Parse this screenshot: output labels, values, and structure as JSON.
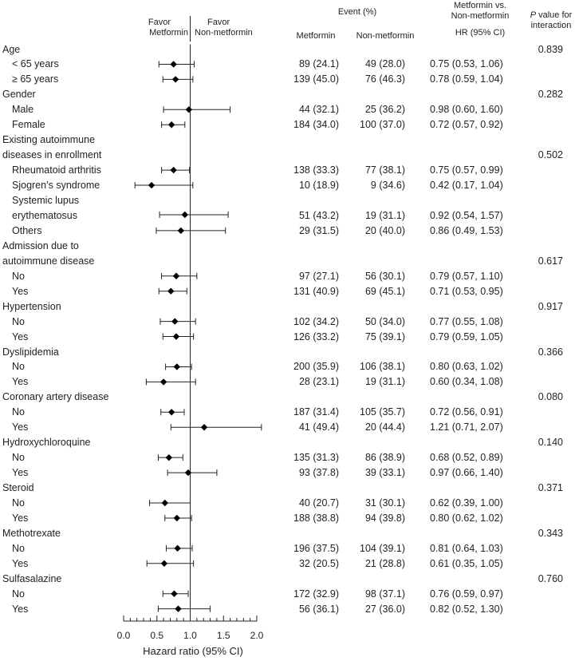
{
  "chart_data": {
    "type": "forest",
    "xlabel": "Hazard ratio (95% CI)",
    "xlim": [
      0,
      2.0
    ],
    "xticks": [
      0,
      0.5,
      1.0,
      1.5,
      2.0
    ],
    "xtick_labels": [
      "0.0",
      "0.5",
      "1.0",
      "1.5",
      "2.0"
    ],
    "reference_line": 1.0,
    "headers": {
      "favor_left": "Favor Metformin",
      "favor_left_line1": "Favor",
      "favor_left_line2": "Metformin",
      "favor_right_line1": "Favor",
      "favor_right_line2": "Non-metformin",
      "event": "Event (%)",
      "col_metformin": "Metformin",
      "col_nonmetformin": "Non-metformin",
      "hr_line1": "Metformin vs.",
      "hr_line2": "Non-metformin",
      "hr_line3": "HR (95% CI)",
      "p_line1_italic": "P",
      "p_line1_rest": " value for",
      "p_line2": "interaction"
    },
    "rows": [
      {
        "label": "Age",
        "p": "0.839"
      },
      {
        "label": "< 65 years",
        "indent": true,
        "met": "89 (24.1)",
        "non": "49 (28.0)",
        "hr_text": "0.75 (0.53, 1.06)",
        "hr": 0.75,
        "lo": 0.53,
        "hi": 1.06
      },
      {
        "label": "≥ 65 years",
        "indent": true,
        "met": "139 (45.0)",
        "non": "76 (46.3)",
        "hr_text": "0.78 (0.59, 1.04)",
        "hr": 0.78,
        "lo": 0.59,
        "hi": 1.04
      },
      {
        "label": "Gender",
        "p": "0.282"
      },
      {
        "label": "Male",
        "indent": true,
        "met": "44 (32.1)",
        "non": "25 (36.2)",
        "hr_text": "0.98 (0.60, 1.60)",
        "hr": 0.98,
        "lo": 0.6,
        "hi": 1.6
      },
      {
        "label": "Female",
        "indent": true,
        "met": "184 (34.0)",
        "non": "100 (37.0)",
        "hr_text": "0.72 (0.57, 0.92)",
        "hr": 0.72,
        "lo": 0.57,
        "hi": 0.92
      },
      {
        "label": "Existing autoimmune"
      },
      {
        "label": "diseases in enrollment",
        "p": "0.502"
      },
      {
        "label": "Rheumatoid arthritis",
        "indent": true,
        "met": "138 (33.3)",
        "non": "77 (38.1)",
        "hr_text": "0.75 (0.57, 0.99)",
        "hr": 0.75,
        "lo": 0.57,
        "hi": 0.99
      },
      {
        "label": "Sjogren’s syndrome",
        "indent": true,
        "met": "10 (18.9)",
        "non": "9 (34.6)",
        "hr_text": "0.42 (0.17, 1.04)",
        "hr": 0.42,
        "lo": 0.17,
        "hi": 1.04
      },
      {
        "label": "Systemic lupus",
        "indent": true
      },
      {
        "label": "erythematosus",
        "indent": true,
        "met": "51 (43.2)",
        "non": "19 (31.1)",
        "hr_text": "0.92 (0.54, 1.57)",
        "hr": 0.92,
        "lo": 0.54,
        "hi": 1.57,
        "mark_offset": -1
      },
      {
        "label": "Others",
        "indent": true,
        "met": "29 (31.5)",
        "non": "20 (40.0)",
        "hr_text": "0.86 (0.49, 1.53)",
        "hr": 0.86,
        "lo": 0.49,
        "hi": 1.53
      },
      {
        "label": "Admission due to"
      },
      {
        "label": "autoimmune disease",
        "p": "0.617"
      },
      {
        "label": "No",
        "indent": true,
        "met": "97 (27.1)",
        "non": "56 (30.1)",
        "hr_text": "0.79 (0.57, 1.10)",
        "hr": 0.79,
        "lo": 0.57,
        "hi": 1.1
      },
      {
        "label": "Yes",
        "indent": true,
        "met": "131 (40.9)",
        "non": "69 (45.1)",
        "hr_text": "0.71 (0.53, 0.95)",
        "hr": 0.71,
        "lo": 0.53,
        "hi": 0.95
      },
      {
        "label": "Hypertension",
        "p": "0.917"
      },
      {
        "label": "No",
        "indent": true,
        "met": "102 (34.2)",
        "non": "50 (34.0)",
        "hr_text": "0.77 (0.55, 1.08)",
        "hr": 0.77,
        "lo": 0.55,
        "hi": 1.08
      },
      {
        "label": "Yes",
        "indent": true,
        "met": "126 (33.2)",
        "non": "75 (39.1)",
        "hr_text": "0.79 (0.59, 1.05)",
        "hr": 0.79,
        "lo": 0.59,
        "hi": 1.05
      },
      {
        "label": "Dyslipidemia",
        "p": "0.366"
      },
      {
        "label": "No",
        "indent": true,
        "met": "200 (35.9)",
        "non": "106 (38.1)",
        "hr_text": "0.80 (0.63, 1.02)",
        "hr": 0.8,
        "lo": 0.63,
        "hi": 1.02
      },
      {
        "label": "Yes",
        "indent": true,
        "met": "28 (23.1)",
        "non": "19 (31.1)",
        "hr_text": "0.60 (0.34, 1.08)",
        "hr": 0.6,
        "lo": 0.34,
        "hi": 1.08
      },
      {
        "label": "Coronary artery disease",
        "p": "0.080"
      },
      {
        "label": "No",
        "indent": true,
        "met": "187 (31.4)",
        "non": "105 (35.7)",
        "hr_text": "0.72 (0.56, 0.91)",
        "hr": 0.72,
        "lo": 0.56,
        "hi": 0.91
      },
      {
        "label": "Yes",
        "indent": true,
        "met": "41 (49.4)",
        "non": "20 (44.4)",
        "hr_text": "1.21 (0.71, 2.07)",
        "hr": 1.21,
        "lo": 0.71,
        "hi": 2.07
      },
      {
        "label": "Hydroxychloroquine",
        "p": "0.140"
      },
      {
        "label": "No",
        "indent": true,
        "met": "135 (31.3)",
        "non": "86 (38.9)",
        "hr_text": "0.68 (0.52, 0.89)",
        "hr": 0.68,
        "lo": 0.52,
        "hi": 0.89
      },
      {
        "label": "Yes",
        "indent": true,
        "met": "93 (37.8)",
        "non": "39 (33.1)",
        "hr_text": "0.97 (0.66, 1.40)",
        "hr": 0.97,
        "lo": 0.66,
        "hi": 1.4
      },
      {
        "label": "Steroid",
        "p": "0.371"
      },
      {
        "label": "No",
        "indent": true,
        "met": "40 (20.7)",
        "non": "31 (30.1)",
        "hr_text": "0.62 (0.39, 1.00)",
        "hr": 0.62,
        "lo": 0.39,
        "hi": 1.0
      },
      {
        "label": "Yes",
        "indent": true,
        "met": "188 (38.8)",
        "non": "94 (39.8)",
        "hr_text": "0.80 (0.62, 1.02)",
        "hr": 0.8,
        "lo": 0.62,
        "hi": 1.02
      },
      {
        "label": "Methotrexate",
        "p": "0.343"
      },
      {
        "label": "No",
        "indent": true,
        "met": "196 (37.5)",
        "non": "104 (39.1)",
        "hr_text": "0.81 (0.64, 1.03)",
        "hr": 0.81,
        "lo": 0.64,
        "hi": 1.03
      },
      {
        "label": "Yes",
        "indent": true,
        "met": "32 (20.5)",
        "non": "21 (28.8)",
        "hr_text": "0.61 (0.35, 1.05)",
        "hr": 0.61,
        "lo": 0.35,
        "hi": 1.05
      },
      {
        "label": "Sulfasalazine",
        "p": "0.760"
      },
      {
        "label": "No",
        "indent": true,
        "met": "172 (32.9)",
        "non": "98 (37.1)",
        "hr_text": "0.76 (0.59, 0.97)",
        "hr": 0.76,
        "lo": 0.59,
        "hi": 0.97
      },
      {
        "label": "Yes",
        "indent": true,
        "met": "56 (36.1)",
        "non": "27 (36.0)",
        "hr_text": "0.82 (0.52, 1.30)",
        "hr": 0.82,
        "lo": 0.52,
        "hi": 1.3
      }
    ]
  }
}
